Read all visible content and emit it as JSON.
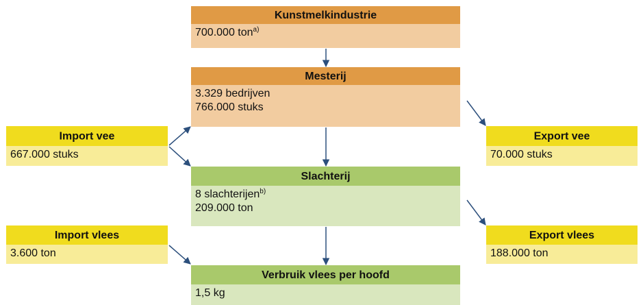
{
  "nodes": [
    {
      "title": "Kunstmelkindustrie",
      "lines": [
        "700.000 ton"
      ],
      "note": "a)"
    },
    {
      "title": "Mesterij",
      "lines": [
        "3.329 bedrijven",
        "766.000 stuks"
      ]
    },
    {
      "title": "Import vee",
      "lines": [
        "667.000 stuks"
      ]
    },
    {
      "title": "Export vee",
      "lines": [
        "70.000 stuks"
      ]
    },
    {
      "title": "Slachterij",
      "lines": [
        "8 slachterijen",
        "209.000 ton"
      ],
      "note": "b)"
    },
    {
      "title": "Import vlees",
      "lines": [
        "3.600 ton"
      ]
    },
    {
      "title": "Export vlees",
      "lines": [
        "188.000 ton"
      ]
    },
    {
      "title": "Verbruik vlees per hoofd",
      "lines": [
        "1,5 kg"
      ]
    }
  ]
}
